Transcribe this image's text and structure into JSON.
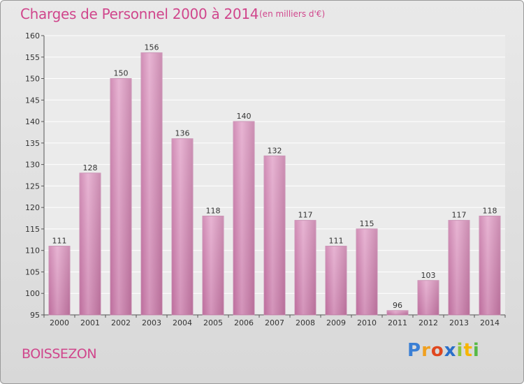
{
  "title": "Charges de Personnel 2000 à 2014",
  "subtitle": "(en milliers d'€)",
  "place": "BOISSEZON",
  "logo": {
    "p": "P",
    "r": "r",
    "o": "o",
    "x": "x",
    "i1": "i",
    "t": "t",
    "i2": "i"
  },
  "chart_data": {
    "type": "bar",
    "categories": [
      "2000",
      "2001",
      "2002",
      "2003",
      "2004",
      "2005",
      "2006",
      "2007",
      "2008",
      "2009",
      "2010",
      "2011",
      "2012",
      "2013",
      "2014"
    ],
    "values": [
      111,
      128,
      150,
      156,
      136,
      118,
      140,
      132,
      117,
      111,
      115,
      96,
      103,
      117,
      118
    ],
    "ylim": [
      95,
      160
    ],
    "yticks": [
      95,
      100,
      105,
      110,
      115,
      120,
      125,
      130,
      135,
      140,
      145,
      150,
      155,
      160
    ],
    "grid": true,
    "bar_color": "#d98fbc",
    "bar_color_dark": "#b96a9a"
  }
}
